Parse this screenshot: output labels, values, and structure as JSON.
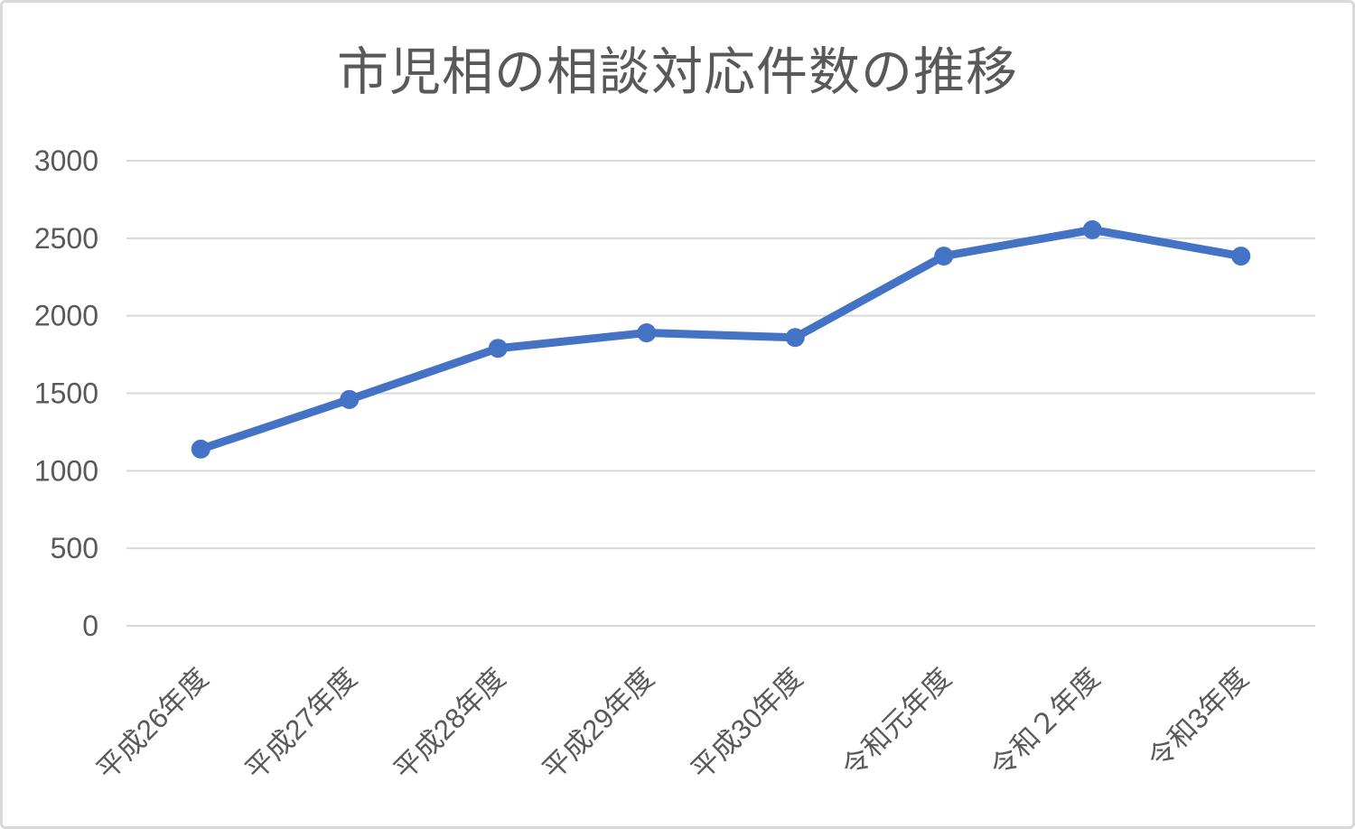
{
  "chart_data": {
    "type": "line",
    "title": "市児相の相談対応件数の推移",
    "categories": [
      "平成26年度",
      "平成27年度",
      "平成28年度",
      "平成29年度",
      "平成30年度",
      "令和元年度",
      "令和２年度",
      "令和3年度"
    ],
    "values": [
      1140,
      1460,
      1790,
      1890,
      1860,
      2385,
      2555,
      2385
    ],
    "xlabel": "",
    "ylabel": "",
    "ylim": [
      0,
      3000
    ],
    "yticks": [
      0,
      500,
      1000,
      1500,
      2000,
      2500,
      3000
    ],
    "grid": "horizontal",
    "legend": "none",
    "x_label_rotation_deg": 45,
    "colors": {
      "line": "#4472C4",
      "marker": "#4472C4",
      "gridline": "#d9d9d9",
      "tick_label": "#595959",
      "title": "#595959",
      "frame_border": "#d9d9d9",
      "background": "#ffffff"
    }
  }
}
